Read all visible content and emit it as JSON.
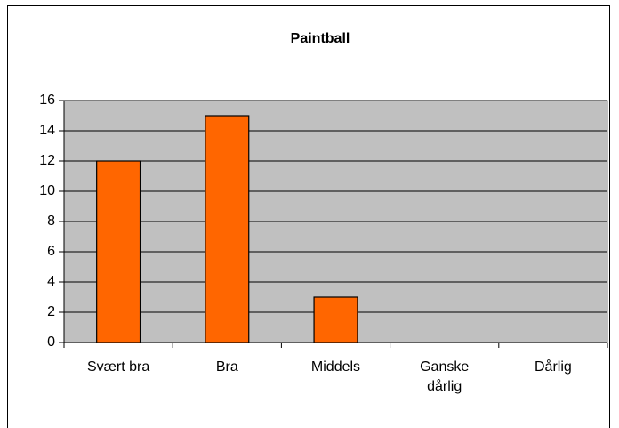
{
  "chart_data": {
    "type": "bar",
    "title": "Paintball",
    "categories": [
      "Svært bra",
      "Bra",
      "Middels",
      "Ganske dårlig",
      "Dårlig"
    ],
    "values": [
      12,
      15,
      3,
      0,
      0
    ],
    "color": "#ff6600",
    "ylim": [
      0,
      16
    ],
    "yticks": [
      0,
      2,
      4,
      6,
      8,
      10,
      12,
      14,
      16
    ],
    "grid": true
  }
}
